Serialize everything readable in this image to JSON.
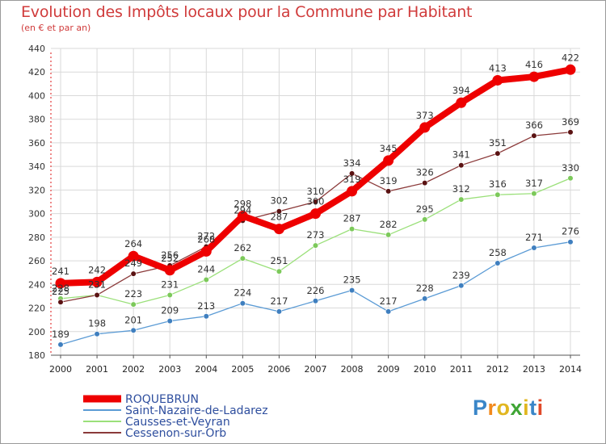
{
  "title": "Evolution des Impôts locaux pour la Commune par Habitant",
  "subtitle": "(en € et par an)",
  "logo": {
    "p": "P",
    "r": "r",
    "o": "o",
    "x": "x",
    "i1": "i",
    "t": "t",
    "i2": "i"
  },
  "chart_data": {
    "type": "line",
    "title": "Evolution des Impôts locaux pour la Commune par Habitant",
    "ylabel": "(en € et par an)",
    "xlabel": "",
    "ylim": [
      180,
      440
    ],
    "yticks": [
      180,
      200,
      220,
      240,
      260,
      280,
      300,
      320,
      340,
      360,
      380,
      400,
      420,
      440
    ],
    "categories": [
      "2000",
      "2001",
      "2002",
      "2003",
      "2004",
      "2005",
      "2006",
      "2007",
      "2008",
      "2009",
      "2010",
      "2011",
      "2012",
      "2013",
      "2014"
    ],
    "series": [
      {
        "name": "Saint-Nazaire-de-Ladarez",
        "color": "#5b9bd5",
        "dot": "#3f7fbf",
        "values": [
          189,
          198,
          201,
          209,
          213,
          224,
          217,
          226,
          235,
          217,
          228,
          239,
          258,
          271,
          276
        ]
      },
      {
        "name": "Causses-et-Veyran",
        "color": "#9be07a",
        "dot": "#7cc95a",
        "values": [
          228,
          231,
          223,
          231,
          244,
          262,
          251,
          273,
          287,
          282,
          295,
          312,
          316,
          317,
          330
        ]
      },
      {
        "name": "Cessenon-sur-Orb",
        "color": "#8b3a3a",
        "dot": "#5a1212",
        "values": [
          225,
          231,
          249,
          256,
          272,
          294,
          302,
          310,
          334,
          319,
          326,
          341,
          351,
          366,
          369
        ]
      },
      {
        "name": "ROQUEBRUN",
        "color": "#ee0000",
        "dot": "#ee0000",
        "values": [
          241,
          242,
          264,
          252,
          268,
          298,
          287,
          300,
          319,
          345,
          373,
          394,
          413,
          416,
          422
        ]
      }
    ],
    "legend": [
      "ROQUEBRUN",
      "Saint-Nazaire-de-Ladarez",
      "Causses-et-Veyran",
      "Cessenon-sur-Orb"
    ],
    "legend_position": "bottom-left",
    "grid": true
  }
}
